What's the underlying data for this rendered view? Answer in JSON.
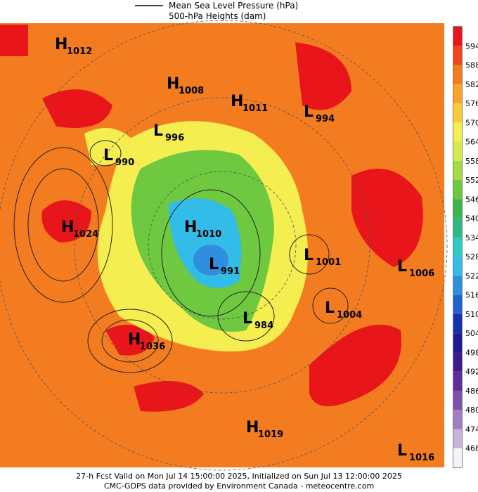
{
  "legend": [
    "Mean Sea Level Pressure (hPa)",
    "500-hPa Heights (dam)"
  ],
  "colorbar": {
    "labels": [
      594,
      588,
      582,
      576,
      570,
      564,
      558,
      552,
      546,
      540,
      534,
      528,
      522,
      516,
      510,
      504,
      498,
      492,
      486,
      480,
      474,
      468
    ],
    "colors": [
      "#e8151b",
      "#f0441c",
      "#f47c20",
      "#f8a428",
      "#fbcc38",
      "#f4ee50",
      "#d6ea4e",
      "#a6da46",
      "#6ec840",
      "#3cb64a",
      "#2eb884",
      "#30c8c4",
      "#34bce8",
      "#2f8ede",
      "#2060cc",
      "#1432ae",
      "#201a90",
      "#3e1a8e",
      "#5e2e9e",
      "#7e50ae",
      "#a080c2",
      "#c8b2da",
      "#f4f2fa"
    ]
  },
  "centers": [
    {
      "kind": "H",
      "value": 1012
    },
    {
      "kind": "H",
      "value": 1008
    },
    {
      "kind": "H",
      "value": 1011
    },
    {
      "kind": "L",
      "value": 994
    },
    {
      "kind": "L",
      "value": 996
    },
    {
      "kind": "L",
      "value": 990
    },
    {
      "kind": "H",
      "value": 1024
    },
    {
      "kind": "H",
      "value": 1010
    },
    {
      "kind": "L",
      "value": 991
    },
    {
      "kind": "L",
      "value": 1001
    },
    {
      "kind": "L",
      "value": 1006
    },
    {
      "kind": "L",
      "value": 1004
    },
    {
      "kind": "L",
      "value": 984
    },
    {
      "kind": "H",
      "value": 1036
    },
    {
      "kind": "H",
      "value": 1019
    },
    {
      "kind": "L",
      "value": 1016
    }
  ],
  "footer": [
    "27-h Fcst Valid on Mon Jul 14 15:00:00 2025, Initialized on Sun Jul 13 12:00:00 2025",
    "CMC-GDPS data provided by Environment Canada - meteocentre.com"
  ]
}
